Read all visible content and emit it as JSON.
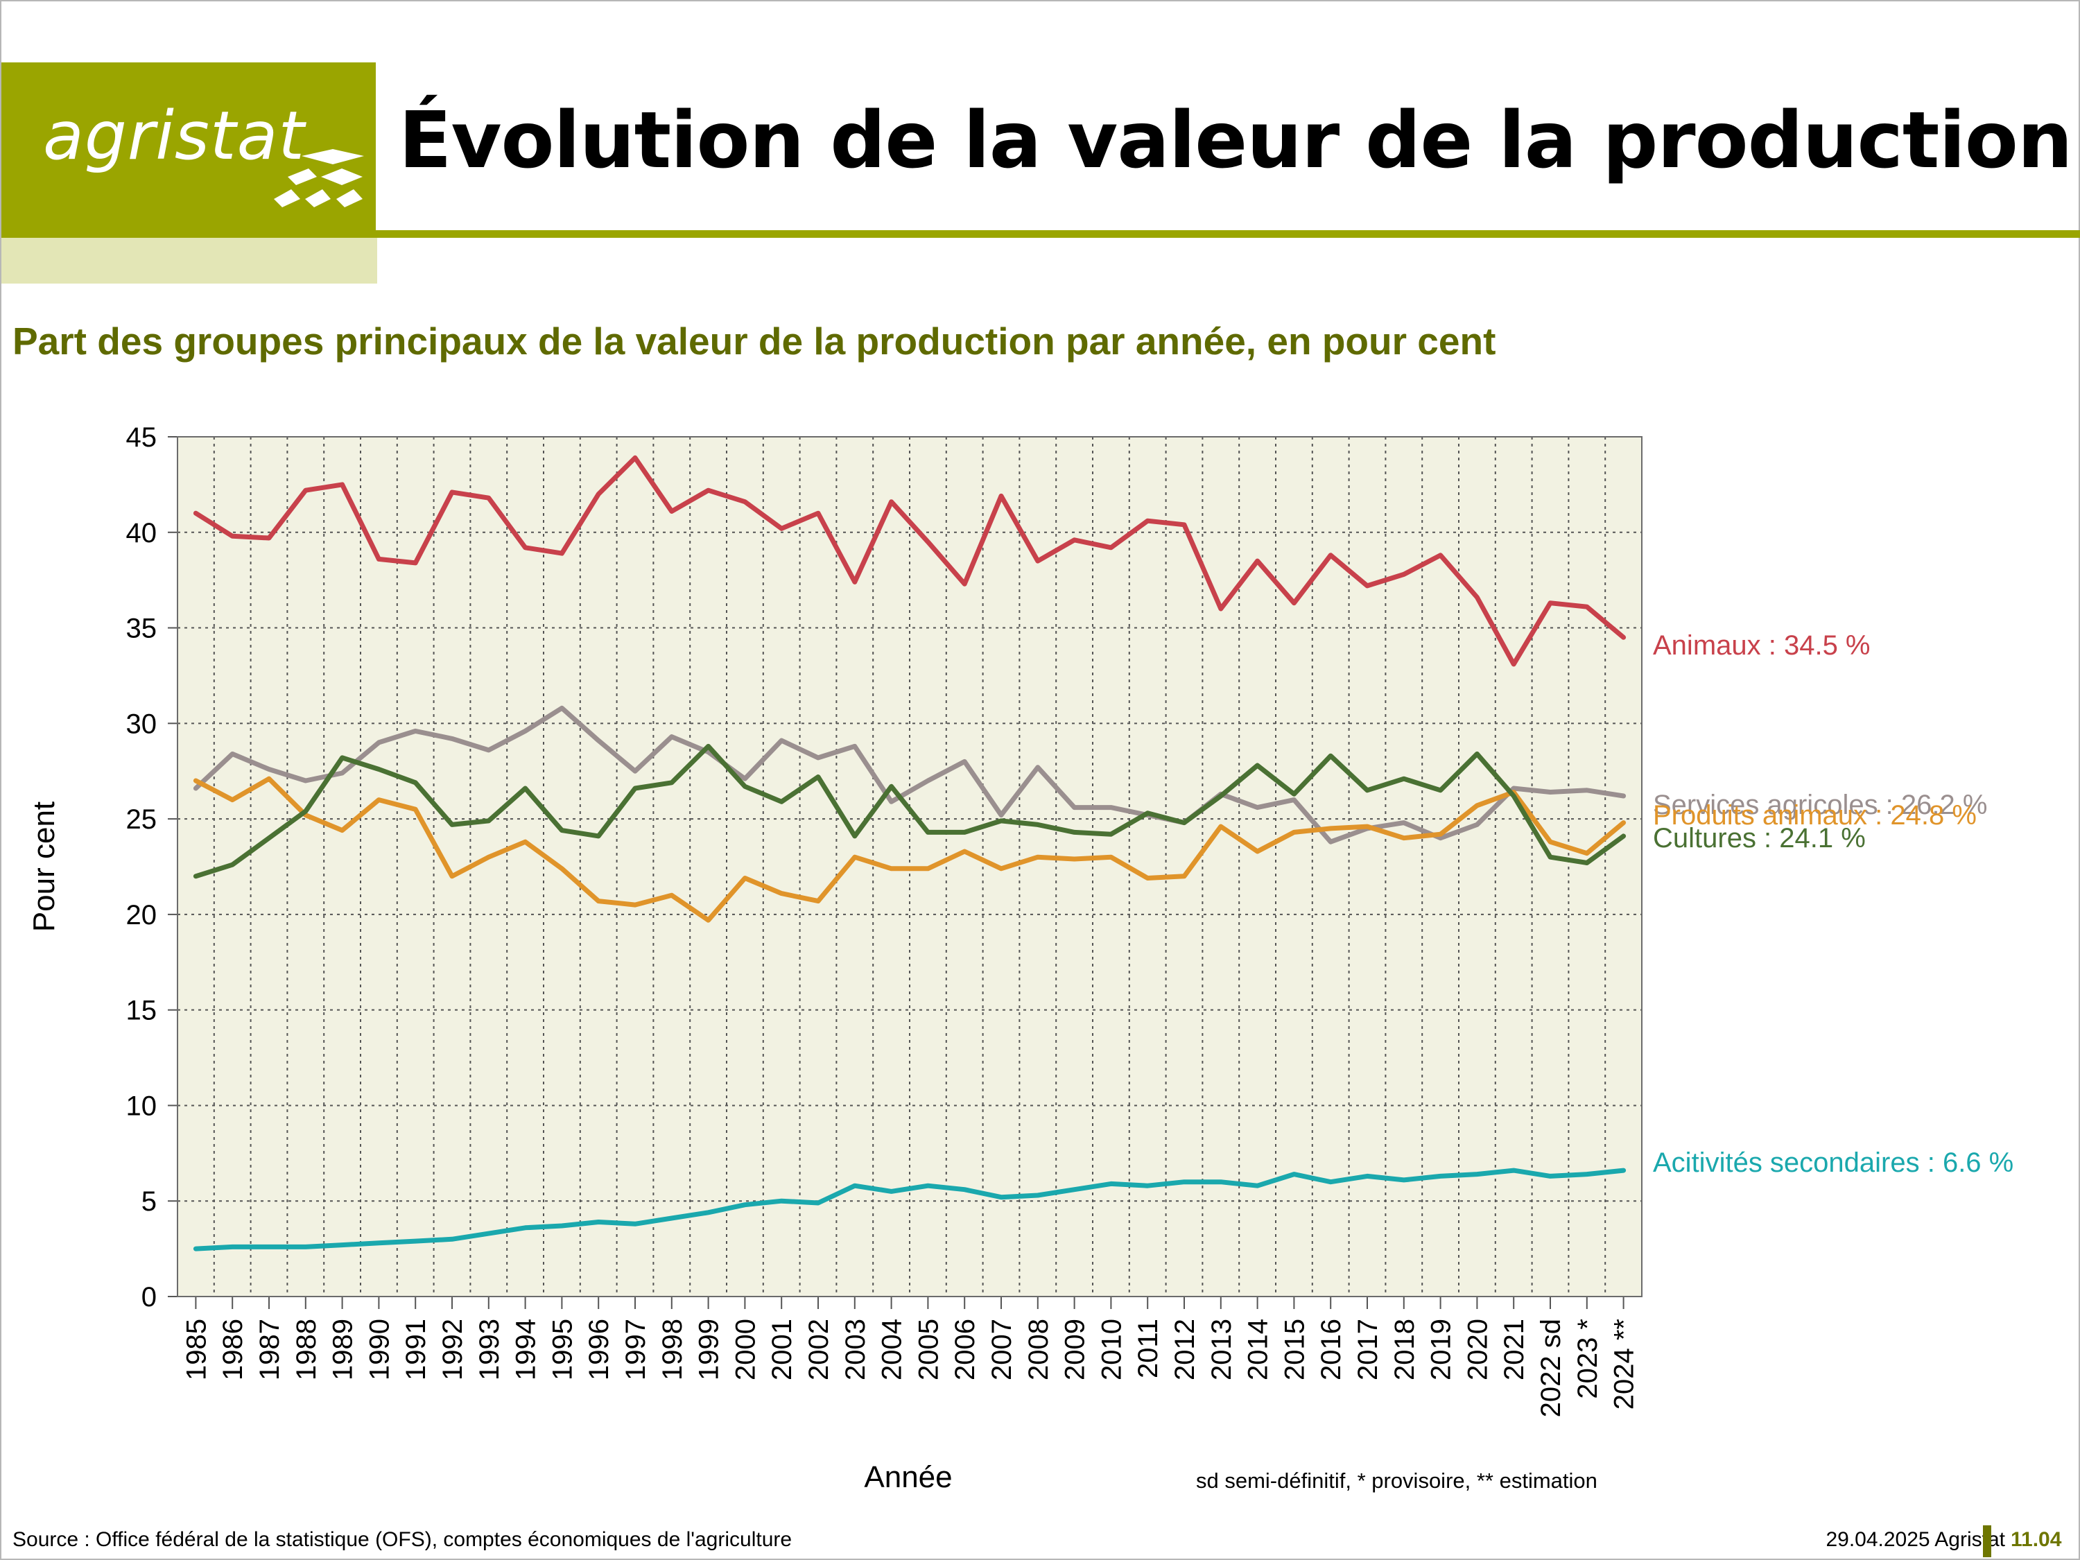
{
  "header": {
    "logo_text": "agristat",
    "title": "Évolution de la valeur de la production"
  },
  "subtitle": "Part des groupes principaux de la valeur de la production par année, en pour cent",
  "colors": {
    "brand_olive": "#9aa500",
    "plot_bg": "#f2f2e2",
    "animaux": "#c8414b",
    "services": "#9a8f8f",
    "produits": "#e0942a",
    "cultures": "#4a7133",
    "secondaires": "#1aa8ad"
  },
  "chart_data": {
    "type": "line",
    "xlabel": "Année",
    "ylabel": "Pour cent",
    "ylim": [
      0,
      45
    ],
    "yticks": [
      0,
      5,
      10,
      15,
      20,
      25,
      30,
      35,
      40,
      45
    ],
    "grid": true,
    "categories": [
      "1985",
      "1986",
      "1987",
      "1988",
      "1989",
      "1990",
      "1991",
      "1992",
      "1993",
      "1994",
      "1995",
      "1996",
      "1997",
      "1998",
      "1999",
      "2000",
      "2001",
      "2002",
      "2003",
      "2004",
      "2005",
      "2006",
      "2007",
      "2008",
      "2009",
      "2010",
      "2011",
      "2012",
      "2013",
      "2014",
      "2015",
      "2016",
      "2017",
      "2018",
      "2019",
      "2020",
      "2021",
      "2022 sd",
      "2023 *",
      "2024 **"
    ],
    "series": [
      {
        "key": "animaux",
        "label": "Animaux : 34.5 %",
        "color": "#c8414b",
        "values": [
          41.0,
          39.8,
          39.7,
          42.2,
          42.5,
          38.6,
          38.4,
          42.1,
          41.8,
          39.2,
          38.9,
          42.0,
          43.9,
          41.1,
          42.2,
          41.6,
          40.2,
          41.0,
          37.4,
          41.6,
          39.5,
          37.3,
          41.9,
          38.5,
          39.6,
          39.2,
          40.6,
          40.4,
          36.0,
          38.5,
          36.3,
          38.8,
          37.2,
          37.8,
          38.8,
          36.6,
          33.1,
          36.3,
          36.1,
          34.5
        ]
      },
      {
        "key": "services",
        "label": "Services agricoles : 26.2 %",
        "color": "#9a8f8f",
        "values": [
          26.6,
          28.4,
          27.6,
          27.0,
          27.4,
          29.0,
          29.6,
          29.2,
          28.6,
          29.6,
          30.8,
          29.1,
          27.5,
          29.3,
          28.5,
          27.1,
          29.1,
          28.2,
          28.8,
          25.9,
          27.0,
          28.0,
          25.2,
          27.7,
          25.6,
          25.6,
          25.2,
          24.8,
          26.3,
          25.6,
          26.0,
          23.8,
          24.5,
          24.8,
          24.0,
          24.7,
          26.6,
          26.4,
          26.5,
          26.2
        ]
      },
      {
        "key": "produits",
        "label": "Produits animaux : 24.8 %",
        "color": "#e0942a",
        "values": [
          27.0,
          26.0,
          27.1,
          25.2,
          24.4,
          26.0,
          25.5,
          22.0,
          23.0,
          23.8,
          22.4,
          20.7,
          20.5,
          21.0,
          19.7,
          21.9,
          21.1,
          20.7,
          23.0,
          22.4,
          22.4,
          23.3,
          22.4,
          23.0,
          22.9,
          23.0,
          21.9,
          22.0,
          24.6,
          23.3,
          24.3,
          24.5,
          24.6,
          24.0,
          24.2,
          25.7,
          26.4,
          23.8,
          23.2,
          24.8
        ]
      },
      {
        "key": "cultures",
        "label": "Cultures : 24.1 %",
        "color": "#4a7133",
        "values": [
          22.0,
          22.6,
          24.0,
          25.4,
          28.2,
          27.6,
          26.9,
          24.7,
          24.9,
          26.6,
          24.4,
          24.1,
          26.6,
          26.9,
          28.8,
          26.7,
          25.9,
          27.2,
          24.1,
          26.7,
          24.3,
          24.3,
          24.9,
          24.7,
          24.3,
          24.2,
          25.3,
          24.8,
          26.2,
          27.8,
          26.3,
          28.3,
          26.5,
          27.1,
          26.5,
          28.4,
          26.2,
          23.0,
          22.7,
          24.1
        ]
      },
      {
        "key": "secondaires",
        "label": "Acitivités secondaires : 6.6 %",
        "color": "#1aa8ad",
        "values": [
          2.5,
          2.6,
          2.6,
          2.6,
          2.7,
          2.8,
          2.9,
          3.0,
          3.3,
          3.6,
          3.7,
          3.9,
          3.8,
          4.1,
          4.4,
          4.8,
          5.0,
          4.9,
          5.8,
          5.5,
          5.8,
          5.6,
          5.2,
          5.3,
          5.6,
          5.9,
          5.8,
          6.0,
          6.0,
          5.8,
          6.4,
          6.0,
          6.3,
          6.1,
          6.3,
          6.4,
          6.6,
          6.3,
          6.4,
          6.6
        ]
      }
    ]
  },
  "note": "sd semi-définitif, * provisoire, ** estimation",
  "footer": {
    "source": "Source : Office fédéral de la statistique (OFS), comptes économiques de l'agriculture",
    "date": "29.04.2025 Agristat",
    "page": "11.04"
  }
}
